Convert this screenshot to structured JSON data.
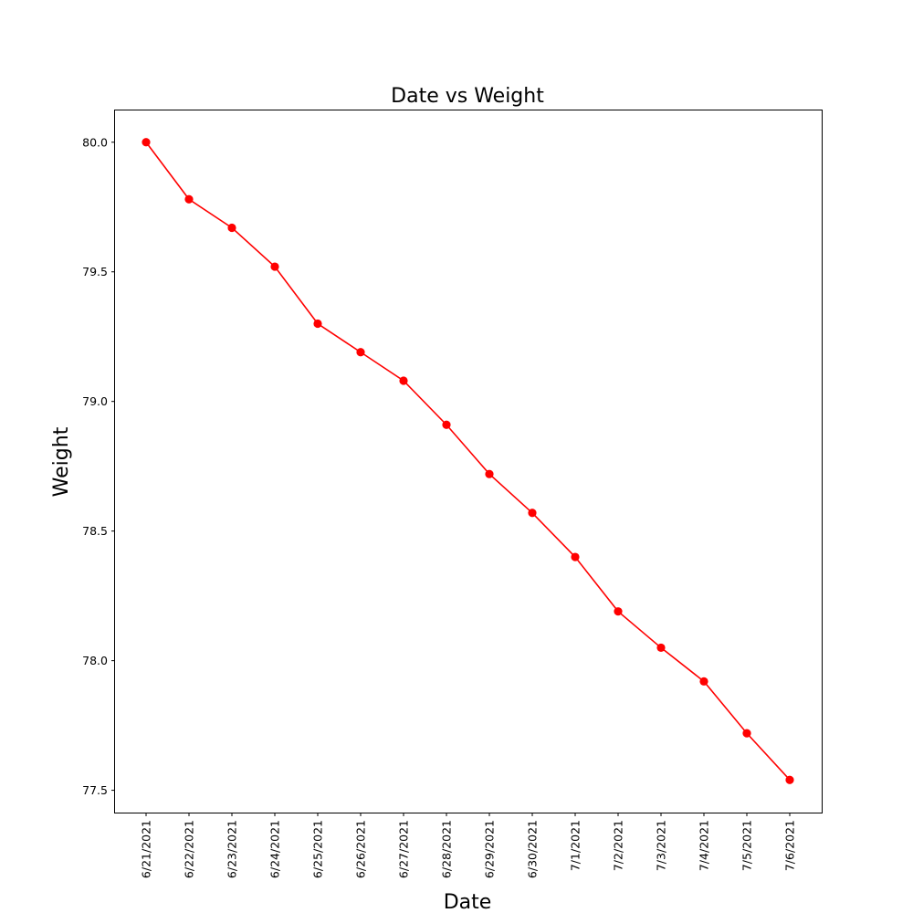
{
  "chart_data": {
    "type": "line",
    "title": "Date vs Weight",
    "xlabel": "Date",
    "ylabel": "Weight",
    "categories": [
      "6/21/2021",
      "6/22/2021",
      "6/23/2021",
      "6/24/2021",
      "6/25/2021",
      "6/26/2021",
      "6/27/2021",
      "6/28/2021",
      "6/29/2021",
      "6/30/2021",
      "7/1/2021",
      "7/2/2021",
      "7/3/2021",
      "7/4/2021",
      "7/5/2021",
      "7/6/2021"
    ],
    "series": [
      {
        "values": [
          80.0,
          79.78,
          79.67,
          79.52,
          79.3,
          79.19,
          79.08,
          78.91,
          78.72,
          78.57,
          78.4,
          78.19,
          78.05,
          77.92,
          77.72,
          77.54
        ],
        "color": "#ff0000",
        "marker": "circle"
      }
    ],
    "yticks": [
      "77.5",
      "78.0",
      "78.5",
      "79.0",
      "79.5",
      "80.0"
    ],
    "ylim": [
      77.414,
      80.126
    ],
    "grid": false,
    "legend": "none"
  }
}
